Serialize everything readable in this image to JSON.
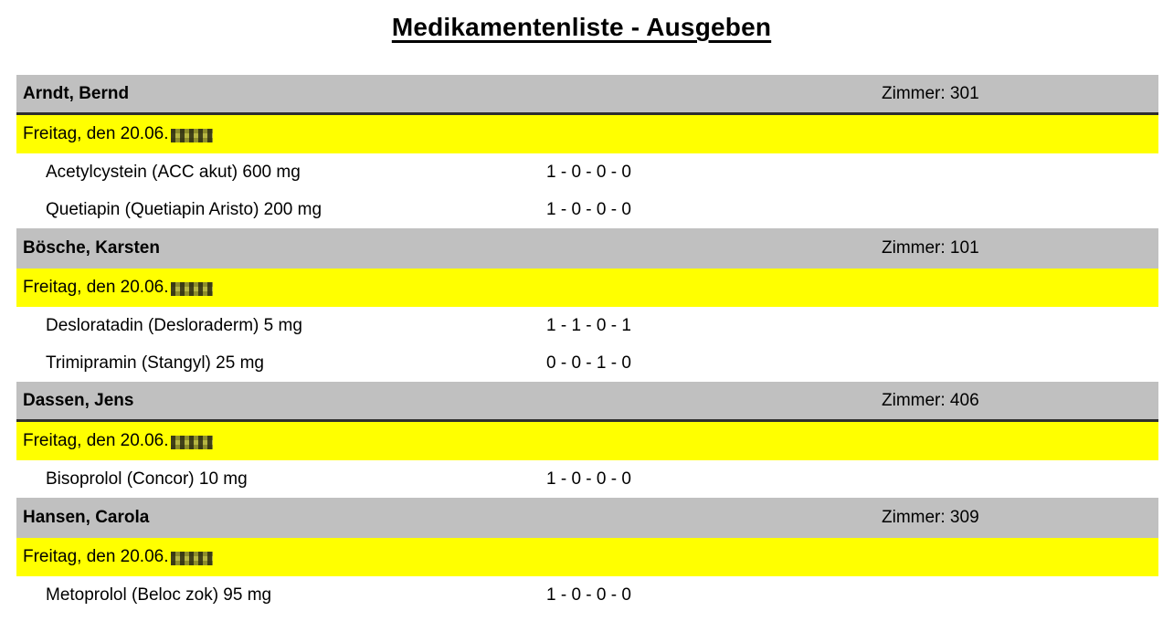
{
  "page": {
    "title": "Medikamentenliste - Ausgeben",
    "background": "#ffffff"
  },
  "colors": {
    "patient_bar": "#c0c0c0",
    "date_bar": "#ffff00",
    "divider": "#2e2e2e",
    "text": "#000000"
  },
  "sections": [
    {
      "patient": "Arndt, Bernd",
      "room_text": "Zimmer: 301",
      "date_text": "Freitag, den 20.06.",
      "year_redacted": true,
      "divider_below_header": true,
      "medications": [
        {
          "name": "Acetylcystein (ACC akut) 600 mg",
          "schedule": "1 - 0 - 0 - 0"
        },
        {
          "name": "Quetiapin (Quetiapin Aristo) 200 mg",
          "schedule": "1 - 0 - 0 - 0"
        }
      ]
    },
    {
      "patient": "Bösche, Karsten",
      "room_text": "Zimmer: 101",
      "date_text": "Freitag, den 20.06.",
      "year_redacted": true,
      "divider_below_header": false,
      "medications": [
        {
          "name": "Desloratadin (Desloraderm) 5 mg",
          "schedule": "1 - 1 - 0 - 1"
        },
        {
          "name": "Trimipramin (Stangyl) 25 mg",
          "schedule": "0 - 0 - 1 - 0"
        }
      ]
    },
    {
      "patient": "Dassen, Jens",
      "room_text": "Zimmer: 406",
      "date_text": "Freitag, den 20.06.",
      "year_redacted": true,
      "divider_below_header": true,
      "medications": [
        {
          "name": "Bisoprolol (Concor) 10 mg",
          "schedule": "1 - 0 - 0 - 0"
        }
      ]
    },
    {
      "patient": "Hansen, Carola",
      "room_text": "Zimmer: 309",
      "date_text": "Freitag, den 20.06.",
      "year_redacted": true,
      "divider_below_header": false,
      "medications": [
        {
          "name": "Metoprolol (Beloc zok) 95 mg",
          "schedule": "1 - 0 - 0 - 0"
        }
      ]
    }
  ]
}
